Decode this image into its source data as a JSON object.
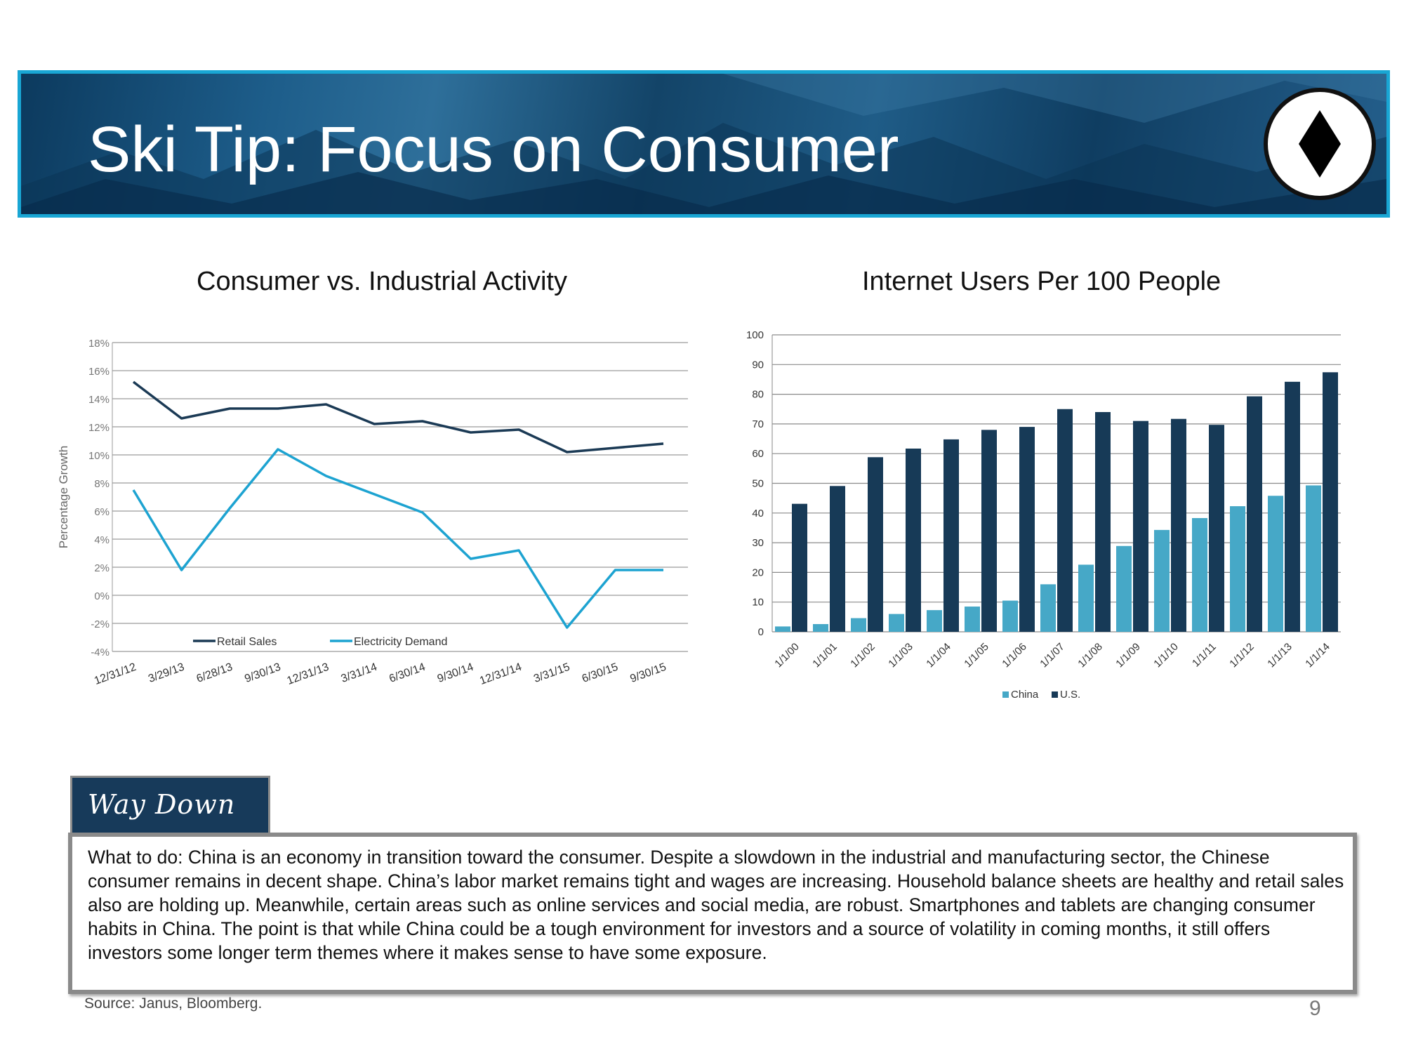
{
  "banner": {
    "title": "Ski Tip: Focus on Consumer",
    "badge_icon": "black-diamond-icon",
    "border_color": "#19a6d4"
  },
  "left_chart_title": "Consumer vs. Industrial Activity",
  "right_chart_title": "Internet Users Per 100 People",
  "chart_data": [
    {
      "type": "line",
      "title": "Consumer vs. Industrial Activity",
      "ylabel": "Percentage Growth",
      "ylim": [
        -4,
        18
      ],
      "yticks": [
        18,
        16,
        14,
        12,
        10,
        8,
        6,
        4,
        2,
        0,
        -2,
        -4
      ],
      "ytick_labels": [
        "18%",
        "16%",
        "14%",
        "12%",
        "10%",
        "8%",
        "6%",
        "4%",
        "2%",
        "0%",
        "-2%",
        "-4%"
      ],
      "categories": [
        "12/31/12",
        "3/29/13",
        "6/28/13",
        "9/30/13",
        "12/31/13",
        "3/31/14",
        "6/30/14",
        "9/30/14",
        "12/31/14",
        "3/31/15",
        "6/30/15",
        "9/30/15"
      ],
      "grid": true,
      "legend_position": "bottom-inside",
      "series": [
        {
          "name": "Retail Sales",
          "color": "#1b3a55",
          "values": [
            15.2,
            12.6,
            13.3,
            13.3,
            13.6,
            12.2,
            12.4,
            11.6,
            11.8,
            10.2,
            10.5,
            10.8
          ]
        },
        {
          "name": "Electricity Demand",
          "color": "#1da3d1",
          "values": [
            7.5,
            1.8,
            6.2,
            10.4,
            8.5,
            7.2,
            5.9,
            2.6,
            3.2,
            -2.3,
            1.8,
            1.8
          ]
        }
      ]
    },
    {
      "type": "bar",
      "title": "Internet Users Per 100 People",
      "ylim": [
        0,
        100
      ],
      "yticks": [
        100,
        90,
        80,
        70,
        60,
        50,
        40,
        30,
        20,
        10,
        0
      ],
      "categories": [
        "1/1/00",
        "1/1/01",
        "1/1/02",
        "1/1/03",
        "1/1/04",
        "1/1/05",
        "1/1/06",
        "1/1/07",
        "1/1/08",
        "1/1/09",
        "1/1/10",
        "1/1/11",
        "1/1/12",
        "1/1/13",
        "1/1/14"
      ],
      "grid": true,
      "legend_position": "bottom",
      "series": [
        {
          "name": "China",
          "color": "#46a8c7",
          "values": [
            1.8,
            2.6,
            4.6,
            6.0,
            7.3,
            8.5,
            10.5,
            16.0,
            22.6,
            28.9,
            34.3,
            38.3,
            42.3,
            45.8,
            49.3
          ]
        },
        {
          "name": "U.S.",
          "color": "#173a57",
          "values": [
            43.1,
            49.1,
            58.8,
            61.7,
            64.8,
            68.0,
            69.0,
            75.0,
            74.0,
            71.0,
            71.7,
            69.7,
            79.3,
            84.2,
            87.4
          ]
        }
      ]
    }
  ],
  "way_down_label": "Way Down",
  "body_text": "What to do: China is an economy in transition toward the consumer. Despite a slowdown in the industrial and manufacturing sector, the Chinese consumer remains in decent shape. China’s labor market remains tight and wages are increasing. Household balance sheets are healthy and retail sales also are holding up. Meanwhile, certain areas such as online services and social media, are robust. Smartphones and tablets are changing consumer habits in China. The point is that while China could be a tough environment for investors and a source of volatility in coming months, it still offers investors some longer term themes where it makes sense to have some exposure.",
  "source": "Source: Janus, Bloomberg.",
  "page_number": "9"
}
